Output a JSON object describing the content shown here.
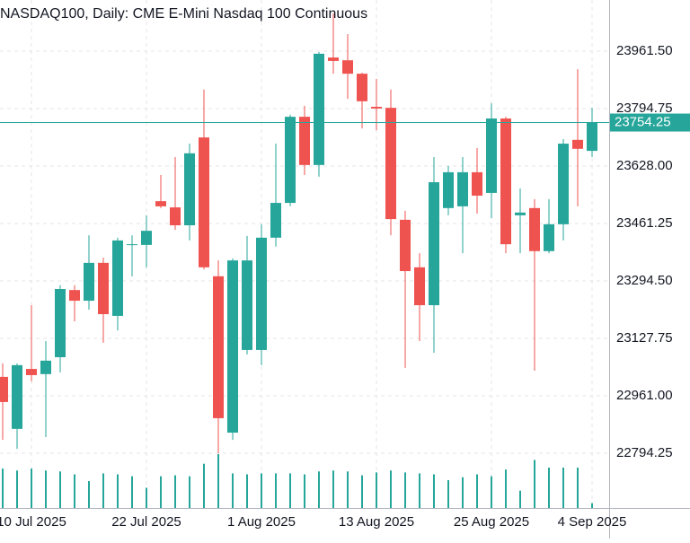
{
  "chart_data": {
    "type": "candlestick",
    "title": "NASDAQ100, Daily:  CME E-Mini Nasdaq 100 Continuous",
    "categories": [
      null,
      null,
      "10 Jul 2025",
      null,
      null,
      null,
      null,
      null,
      null,
      null,
      "22 Jul 2025",
      null,
      null,
      null,
      null,
      null,
      null,
      null,
      "1 Aug 2025",
      null,
      null,
      null,
      null,
      null,
      null,
      null,
      "13 Aug 2025",
      null,
      null,
      null,
      null,
      null,
      null,
      null,
      "25 Aug 2025",
      null,
      null,
      null,
      null,
      null,
      null,
      "4 Sep 2025"
    ],
    "open": [
      23016,
      22865,
      23039,
      23024,
      23073,
      23268,
      23237,
      23347,
      23193,
      23399,
      23399,
      23526,
      23508,
      23456,
      23711,
      23308,
      22854,
      23094,
      23094,
      23420,
      23521,
      23771,
      23631,
      23943,
      23935,
      23896,
      23800,
      23797,
      23472,
      23334,
      23224,
      23506,
      23511,
      23610,
      23550,
      23766,
      23485,
      23506,
      23381,
      23459,
      23704,
      23672
    ],
    "high": [
      23055,
      23055,
      23224,
      23120,
      23282,
      23282,
      23427,
      23362,
      23420,
      23427,
      23485,
      23602,
      23654,
      23693,
      23850,
      23354,
      23360,
      23425,
      23459,
      23693,
      23777,
      23803,
      23959,
      24071,
      24011,
      23899,
      23881,
      23850,
      23498,
      23375,
      23654,
      23628,
      23654,
      23680,
      23810,
      23771,
      23563,
      23532,
      23532,
      23706,
      23909,
      23797
    ],
    "low": [
      22833,
      22807,
      23003,
      22841,
      23029,
      23177,
      23211,
      23115,
      23151,
      23308,
      23334,
      23506,
      23443,
      23412,
      23328,
      22794,
      22833,
      23081,
      23050,
      23394,
      23511,
      23602,
      23597,
      23896,
      23823,
      23737,
      23732,
      23427,
      23042,
      23120,
      23086,
      23485,
      23375,
      23490,
      23477,
      23375,
      23375,
      23034,
      23375,
      23412,
      23511,
      23654
    ],
    "close": [
      22943,
      23050,
      23021,
      23063,
      23271,
      23237,
      23347,
      23198,
      23412,
      23401,
      23440,
      23511,
      23456,
      23665,
      23334,
      22896,
      23354,
      23354,
      23420,
      23521,
      23771,
      23631,
      23954,
      23933,
      23896,
      23816,
      23795,
      23474,
      23323,
      23224,
      23581,
      23610,
      23610,
      23542,
      23766,
      23401,
      23493,
      23381,
      23459,
      23693,
      23678,
      23754.25
    ],
    "volume": [
      41000,
      39000,
      41000,
      39000,
      38000,
      35000,
      28000,
      36000,
      35000,
      33000,
      21000,
      33000,
      34000,
      33000,
      46000,
      56000,
      36000,
      35000,
      36000,
      36000,
      36000,
      35000,
      38000,
      39000,
      38000,
      34000,
      37000,
      39000,
      37000,
      36000,
      35000,
      29000,
      32000,
      35000,
      33000,
      40000,
      18000,
      50000,
      42000,
      42000,
      42000,
      5000
    ],
    "up_color": "#26a69a",
    "down_color": "#ef5350",
    "volume_color": "#26a69a",
    "last_price": 23754.25,
    "ylim": [
      22635.3,
      24110.0
    ],
    "yticks": [
      {
        "value": 22794.25,
        "label": "22794.25"
      },
      {
        "value": 22961.0,
        "label": "22961.00"
      },
      {
        "value": 23127.75,
        "label": "23127.75"
      },
      {
        "value": 23294.5,
        "label": "23294.50"
      },
      {
        "value": 23461.25,
        "label": "23461.25"
      },
      {
        "value": 23628.0,
        "label": "23628.00"
      },
      {
        "value": 23794.75,
        "label": "23794.75"
      },
      {
        "value": 23961.5,
        "label": "23961.50"
      }
    ],
    "grid": true
  }
}
